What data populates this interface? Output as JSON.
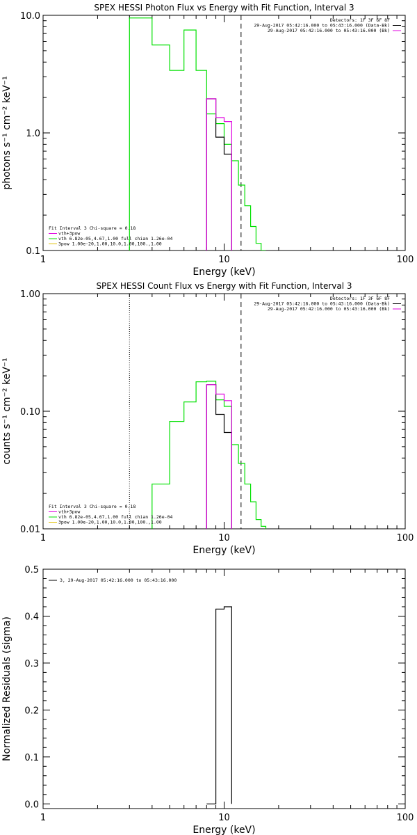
{
  "chart_data": [
    {
      "type": "line",
      "title": "SPEX HESSI Photon Flux vs Energy with Fit Function, Interval 3",
      "xlabel": "Energy (keV)",
      "ylabel": "photons s⁻¹ cm⁻² keV⁻¹",
      "xscale": "log",
      "yscale": "log",
      "xlim": [
        1,
        100
      ],
      "ylim": [
        0.1,
        10
      ],
      "x_ticks": [
        "1",
        "10",
        "100"
      ],
      "y_ticks": [
        "0.1",
        "1.0",
        "10.0"
      ],
      "top_right_legend": [
        "Detectors: 1F 3F 6F 8F",
        "29-Aug-2017 05:42:16.000 to 05:43:16.000 (Data-Bk)",
        "29-Aug-2017 05:42:16.000 to 05:43:16.000 (Bk)"
      ],
      "fit_legend": [
        "Fit Interval 3   Chi-square = 0.18",
        "vth+3pow",
        "vth 6.82e-05,4.67,1.00  full chian 1.26e-04",
        "3pow 1.00e-20,1.00,10.0,1.00,100.,1.00"
      ],
      "vlines": [
        {
          "x": 12.4,
          "style": "dashed"
        }
      ],
      "series": [
        {
          "color": "#00e000",
          "edges": [
            3,
            4,
            5,
            6,
            7,
            8,
            9,
            10,
            11,
            12,
            13,
            14,
            15,
            16,
            17
          ],
          "values": [
            9.5,
            5.6,
            3.4,
            7.5,
            3.4,
            1.45,
            1.2,
            0.8,
            0.58,
            0.36,
            0.24,
            0.16,
            0.115,
            0.1
          ]
        },
        {
          "color": "#000000",
          "edges": [
            8,
            9,
            10,
            11
          ],
          "values": [
            1.95,
            0.92,
            0.66
          ]
        },
        {
          "color": "#e000e0",
          "edges": [
            8,
            9,
            10,
            11
          ],
          "values": [
            1.95,
            1.35,
            1.25
          ]
        }
      ]
    },
    {
      "type": "line",
      "title": "SPEX HESSI Count Flux vs Energy with Fit Function, Interval 3",
      "xlabel": "Energy (keV)",
      "ylabel": "counts s⁻¹ cm⁻² keV⁻¹",
      "xscale": "log",
      "yscale": "log",
      "xlim": [
        1,
        100
      ],
      "ylim": [
        0.01,
        1
      ],
      "x_ticks": [
        "1",
        "10",
        "100"
      ],
      "y_ticks": [
        "0.01",
        "0.10",
        "1.00"
      ],
      "top_right_legend": [
        "Detectors: 1F 3F 6F 8F",
        "29-Aug-2017 05:42:16.000 to 05:43:16.000 (Data-Bk)",
        "29-Aug-2017 05:42:16.000 to 05:43:16.000 (Bk)"
      ],
      "fit_legend": [
        "Fit Interval 3   Chi-square = 0.18",
        "vth+3pow",
        "vth 6.82e-05,4.67,1.00  full chian 1.26e-04",
        "3pow 1.00e-20,1.00,10.0,1.00,100.,1.00"
      ],
      "vlines": [
        {
          "x": 3,
          "style": "dotted"
        },
        {
          "x": 12.4,
          "style": "dashed"
        }
      ],
      "series": [
        {
          "color": "#00e000",
          "edges": [
            4,
            5,
            6,
            7,
            8,
            9,
            10,
            11,
            12,
            13,
            14,
            15,
            16,
            17
          ],
          "values": [
            0.024,
            0.082,
            0.12,
            0.178,
            0.18,
            0.125,
            0.11,
            0.052,
            0.036,
            0.024,
            0.017,
            0.012,
            0.0105
          ]
        },
        {
          "color": "#000000",
          "edges": [
            8,
            9,
            10,
            11
          ],
          "values": [
            0.168,
            0.094,
            0.066
          ]
        },
        {
          "color": "#e000e0",
          "edges": [
            8,
            9,
            10,
            11
          ],
          "values": [
            0.168,
            0.14,
            0.123
          ]
        }
      ]
    },
    {
      "type": "line",
      "title": "",
      "xlabel": "Energy (keV)",
      "ylabel": "Normalized Residuals (sigma)",
      "xscale": "log",
      "yscale": "linear",
      "xlim": [
        1,
        100
      ],
      "ylim": [
        -0.01,
        0.5
      ],
      "x_ticks": [
        "1",
        "10",
        "100"
      ],
      "y_ticks": [
        "0.0",
        "0.1",
        "0.2",
        "0.3",
        "0.4",
        "0.5"
      ],
      "legend": [
        "3, 29-Aug-2017 05:42:16.000 to 05:43:16.000"
      ],
      "series": [
        {
          "color": "#000000",
          "edges": [
            8,
            9,
            10,
            11
          ],
          "values": [
            0.0,
            0.415,
            0.42
          ]
        }
      ]
    }
  ]
}
